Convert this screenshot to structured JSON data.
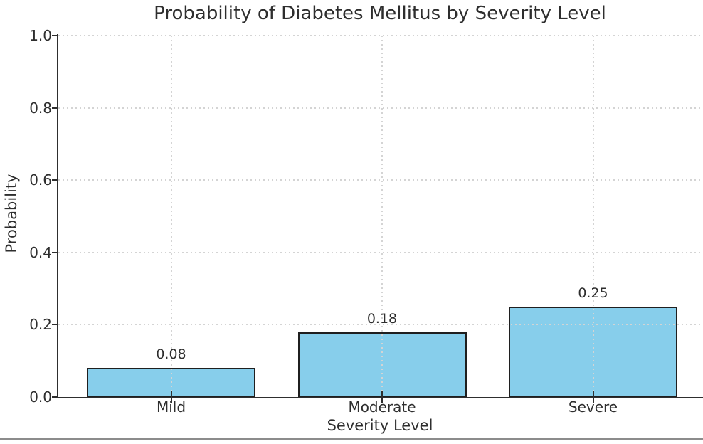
{
  "chart_data": {
    "type": "bar",
    "title": "Probability of Diabetes Mellitus by Severity Level",
    "xlabel": "Severity Level",
    "ylabel": "Probability",
    "categories": [
      "Mild",
      "Moderate",
      "Severe"
    ],
    "values": [
      0.08,
      0.18,
      0.25
    ],
    "bar_value_labels": [
      "0.08",
      "0.18",
      "0.25"
    ],
    "ylim": [
      0.0,
      1.0
    ],
    "yticks": [
      0.0,
      0.2,
      0.4,
      0.6,
      0.8,
      1.0
    ],
    "ytick_labels": [
      "0.0",
      "0.2",
      "0.4",
      "0.6",
      "0.8",
      "1.0"
    ],
    "grid": {
      "visible": true,
      "style": "dotted",
      "axes": "both",
      "above_bars": true
    },
    "legend": {
      "visible": false
    },
    "colors": {
      "bar_fill": "#87CEEB",
      "bar_edge": "#1f1f1f",
      "grid": "#d4d4d4",
      "axis": "#2e2e2e",
      "text": "#2e2e2e",
      "background": "#ffffff",
      "bottom_divider": "#8c8c8c"
    }
  }
}
